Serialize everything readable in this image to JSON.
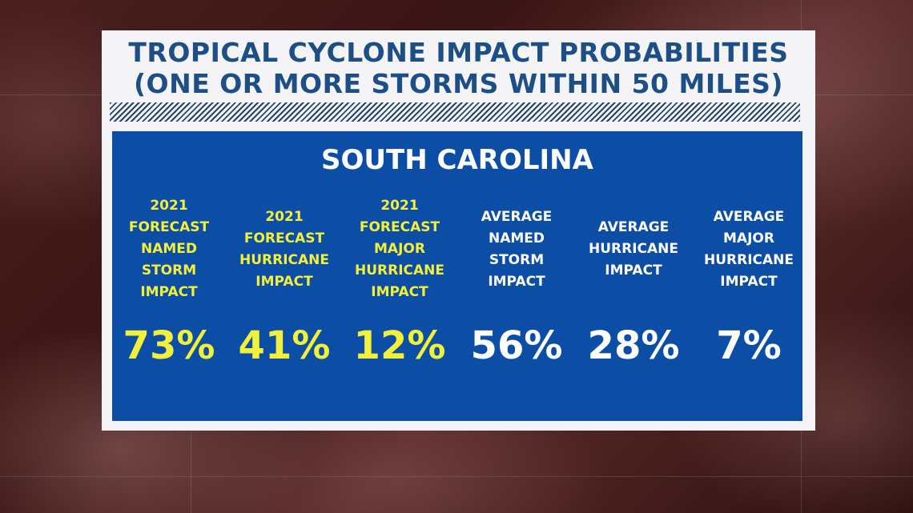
{
  "title": {
    "line1": "TROPICAL CYCLONE IMPACT PROBABILITIES",
    "line2": "(ONE OR MORE STORMS WITHIN 50 MILES)"
  },
  "state": "SOUTH CAROLINA",
  "colors": {
    "forecast": "#f2f03a",
    "average": "#ffffff",
    "panel_blue": "#0c4ea6",
    "title_blue": "#1d4f86"
  },
  "columns": [
    {
      "label": "2021\nFORECAST\nNAMED\nSTORM\nIMPACT",
      "value": "73%"
    },
    {
      "label": "2021\nFORECAST\nHURRICANE\nIMPACT",
      "value": "41%"
    },
    {
      "label": "2021\nFORECAST\nMAJOR\nHURRICANE\nIMPACT",
      "value": "12%"
    },
    {
      "label": "AVERAGE\nNAMED\nSTORM\nIMPACT",
      "value": "56%"
    },
    {
      "label": "AVERAGE\nHURRICANE\nIMPACT",
      "value": "28%"
    },
    {
      "label": "AVERAGE\nMAJOR\nHURRICANE\nIMPACT",
      "value": "7%"
    }
  ]
}
